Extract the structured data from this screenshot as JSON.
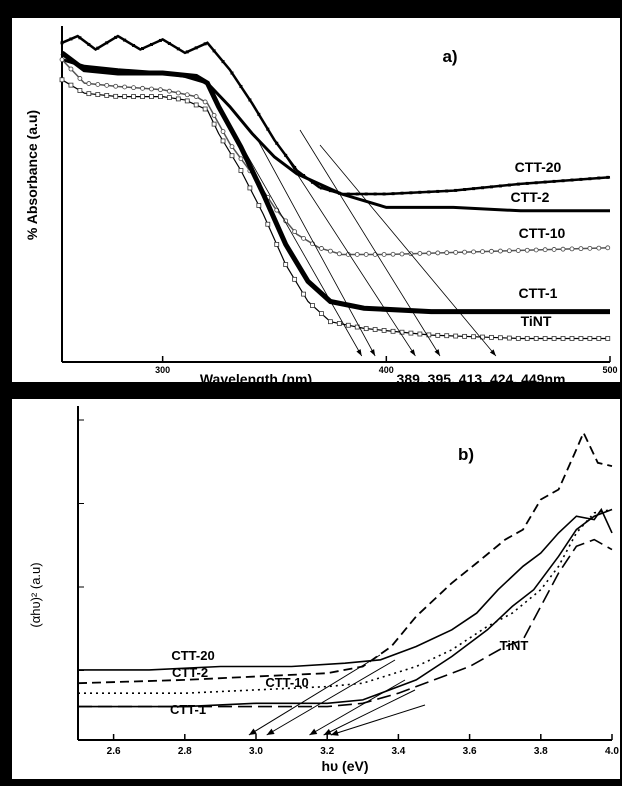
{
  "chart_data": [
    {
      "panel_label": "a)",
      "type": "line",
      "xlabel": "Wavelength (nm)",
      "ylabel": "% Absorbance (a.u)",
      "xlim": [
        255,
        500
      ],
      "ylim": [
        0,
        1
      ],
      "x_ticks": [
        300,
        400,
        500
      ],
      "y_ticks": [],
      "grid": false,
      "legend": "none",
      "annotation": "389, 395,  413, 424, 449nm",
      "series": [
        {
          "name": "CTT-20",
          "marker": "small-squares",
          "points": [
            [
              255,
              0.95
            ],
            [
              262,
              0.97
            ],
            [
              270,
              0.93
            ],
            [
              280,
              0.97
            ],
            [
              290,
              0.93
            ],
            [
              300,
              0.96
            ],
            [
              310,
              0.92
            ],
            [
              320,
              0.95
            ],
            [
              330,
              0.87
            ],
            [
              340,
              0.77
            ],
            [
              350,
              0.66
            ],
            [
              360,
              0.57
            ],
            [
              370,
              0.52
            ],
            [
              380,
              0.5
            ],
            [
              400,
              0.5
            ],
            [
              430,
              0.51
            ],
            [
              460,
              0.53
            ],
            [
              500,
              0.55
            ]
          ]
        },
        {
          "name": "CTT-2",
          "marker": "none",
          "points": [
            [
              255,
              0.9
            ],
            [
              265,
              0.88
            ],
            [
              280,
              0.87
            ],
            [
              300,
              0.86
            ],
            [
              310,
              0.85
            ],
            [
              320,
              0.83
            ],
            [
              330,
              0.76
            ],
            [
              340,
              0.68
            ],
            [
              350,
              0.61
            ],
            [
              360,
              0.56
            ],
            [
              370,
              0.53
            ],
            [
              380,
              0.5
            ],
            [
              390,
              0.48
            ],
            [
              400,
              0.46
            ],
            [
              430,
              0.46
            ],
            [
              460,
              0.45
            ],
            [
              500,
              0.45
            ]
          ]
        },
        {
          "name": "CTT-10",
          "marker": "open-circles",
          "points": [
            [
              255,
              0.9
            ],
            [
              265,
              0.83
            ],
            [
              280,
              0.82
            ],
            [
              300,
              0.81
            ],
            [
              315,
              0.79
            ],
            [
              320,
              0.77
            ],
            [
              330,
              0.65
            ],
            [
              340,
              0.56
            ],
            [
              350,
              0.46
            ],
            [
              360,
              0.38
            ],
            [
              370,
              0.34
            ],
            [
              380,
              0.32
            ],
            [
              400,
              0.32
            ],
            [
              450,
              0.33
            ],
            [
              500,
              0.34
            ]
          ]
        },
        {
          "name": "CTT-1",
          "marker": "filled-squares",
          "points": [
            [
              255,
              0.92
            ],
            [
              265,
              0.87
            ],
            [
              280,
              0.86
            ],
            [
              300,
              0.86
            ],
            [
              315,
              0.85
            ],
            [
              320,
              0.83
            ],
            [
              325,
              0.76
            ],
            [
              335,
              0.64
            ],
            [
              345,
              0.5
            ],
            [
              355,
              0.35
            ],
            [
              365,
              0.24
            ],
            [
              375,
              0.18
            ],
            [
              390,
              0.16
            ],
            [
              420,
              0.15
            ],
            [
              460,
              0.15
            ],
            [
              500,
              0.15
            ]
          ]
        },
        {
          "name": "TiNT",
          "marker": "open-squares",
          "points": [
            [
              255,
              0.84
            ],
            [
              265,
              0.8
            ],
            [
              280,
              0.79
            ],
            [
              300,
              0.79
            ],
            [
              310,
              0.78
            ],
            [
              320,
              0.75
            ],
            [
              325,
              0.68
            ],
            [
              335,
              0.57
            ],
            [
              345,
              0.44
            ],
            [
              355,
              0.29
            ],
            [
              365,
              0.18
            ],
            [
              375,
              0.12
            ],
            [
              390,
              0.1
            ],
            [
              420,
              0.08
            ],
            [
              460,
              0.07
            ],
            [
              500,
              0.07
            ]
          ]
        }
      ],
      "tangent_intercepts_nm": [
        389,
        395,
        413,
        424,
        449
      ]
    },
    {
      "panel_label": "b)",
      "type": "line",
      "xlabel": "hυ (eV)",
      "ylabel": "(αhυ)² (a.u)",
      "xlim": [
        2.5,
        4.0
      ],
      "ylim": [
        0,
        1
      ],
      "x_ticks": [
        "2.6",
        "2.8",
        "3.0",
        "3.2",
        "3.4",
        "3.6",
        "3.8",
        "4.0"
      ],
      "y_ticks": [],
      "grid": false,
      "legend": "none",
      "series": [
        {
          "name": "CTT-20",
          "style": "solid",
          "points": [
            [
              2.5,
              0.21
            ],
            [
              2.7,
              0.21
            ],
            [
              2.9,
              0.22
            ],
            [
              3.1,
              0.22
            ],
            [
              3.25,
              0.23
            ],
            [
              3.35,
              0.24
            ],
            [
              3.45,
              0.28
            ],
            [
              3.55,
              0.33
            ],
            [
              3.62,
              0.38
            ],
            [
              3.68,
              0.45
            ],
            [
              3.75,
              0.52
            ],
            [
              3.8,
              0.56
            ],
            [
              3.85,
              0.62
            ],
            [
              3.9,
              0.67
            ],
            [
              3.95,
              0.66
            ],
            [
              3.97,
              0.69
            ],
            [
              4.0,
              0.62
            ]
          ]
        },
        {
          "name": "CTT-2",
          "style": "dashed",
          "points": [
            [
              2.5,
              0.17
            ],
            [
              2.8,
              0.18
            ],
            [
              3.0,
              0.19
            ],
            [
              3.2,
              0.2
            ],
            [
              3.3,
              0.22
            ],
            [
              3.38,
              0.28
            ],
            [
              3.45,
              0.37
            ],
            [
              3.55,
              0.47
            ],
            [
              3.62,
              0.53
            ],
            [
              3.7,
              0.6
            ],
            [
              3.75,
              0.63
            ],
            [
              3.8,
              0.72
            ],
            [
              3.85,
              0.75
            ],
            [
              3.9,
              0.87
            ],
            [
              3.92,
              0.92
            ],
            [
              3.96,
              0.83
            ],
            [
              4.0,
              0.82
            ]
          ]
        },
        {
          "name": "CTT-10",
          "style": "dotted",
          "points": [
            [
              2.5,
              0.14
            ],
            [
              2.8,
              0.14
            ],
            [
              3.0,
              0.15
            ],
            [
              3.2,
              0.16
            ],
            [
              3.3,
              0.17
            ],
            [
              3.45,
              0.22
            ],
            [
              3.55,
              0.27
            ],
            [
              3.65,
              0.34
            ],
            [
              3.72,
              0.38
            ],
            [
              3.8,
              0.45
            ],
            [
              3.85,
              0.52
            ],
            [
              3.9,
              0.62
            ],
            [
              3.95,
              0.68
            ],
            [
              4.0,
              0.69
            ]
          ]
        },
        {
          "name": "CTT-1",
          "style": "solid",
          "points": [
            [
              2.5,
              0.1
            ],
            [
              2.8,
              0.1
            ],
            [
              3.0,
              0.11
            ],
            [
              3.2,
              0.11
            ],
            [
              3.3,
              0.12
            ],
            [
              3.45,
              0.18
            ],
            [
              3.55,
              0.25
            ],
            [
              3.65,
              0.33
            ],
            [
              3.72,
              0.4
            ],
            [
              3.78,
              0.45
            ],
            [
              3.85,
              0.55
            ],
            [
              3.9,
              0.63
            ],
            [
              3.95,
              0.67
            ],
            [
              4.0,
              0.69
            ]
          ]
        },
        {
          "name": "TiNT",
          "style": "long-dash",
          "points": [
            [
              2.5,
              0.1
            ],
            [
              3.0,
              0.1
            ],
            [
              3.2,
              0.1
            ],
            [
              3.3,
              0.11
            ],
            [
              3.4,
              0.14
            ],
            [
              3.5,
              0.18
            ],
            [
              3.6,
              0.22
            ],
            [
              3.7,
              0.28
            ],
            [
              3.75,
              0.3
            ],
            [
              3.8,
              0.4
            ],
            [
              3.85,
              0.5
            ],
            [
              3.9,
              0.58
            ],
            [
              3.95,
              0.6
            ],
            [
              4.0,
              0.57
            ]
          ]
        }
      ],
      "tangent_intercepts_ev": [
        2.98,
        3.03,
        3.15,
        3.19,
        3.21
      ]
    }
  ]
}
